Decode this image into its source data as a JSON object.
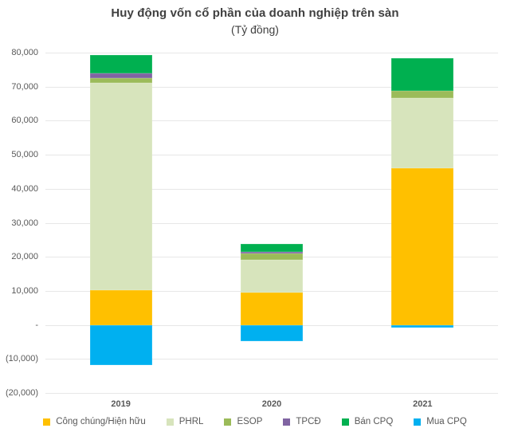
{
  "chart_data": {
    "type": "bar",
    "stacked": true,
    "title": "Huy động vốn cổ phần của doanh nghiệp trên sàn",
    "subtitle": "(Tỷ đồng)",
    "categories": [
      "2019",
      "2020",
      "2021"
    ],
    "series": [
      {
        "name": "Công chúng/Hiện hữu",
        "color": "#FFC000",
        "values": [
          10300,
          9400,
          46100
        ]
      },
      {
        "name": "PHRL",
        "color": "#D7E4BC",
        "values": [
          60700,
          9600,
          20600
        ]
      },
      {
        "name": "ESOP",
        "color": "#9BBB59",
        "values": [
          1600,
          1900,
          2100
        ]
      },
      {
        "name": "TPCĐ",
        "color": "#8064A2",
        "values": [
          1400,
          500,
          0
        ]
      },
      {
        "name": "Bán CPQ",
        "color": "#00B050",
        "values": [
          5200,
          2300,
          9600
        ]
      },
      {
        "name": "Mua CPQ",
        "color": "#00B0F0",
        "values": [
          -11900,
          -4700,
          -700
        ]
      }
    ],
    "ylim": [
      -20000,
      80000
    ],
    "yticks": [
      {
        "value": 80000,
        "label": "80,000"
      },
      {
        "value": 70000,
        "label": "70,000"
      },
      {
        "value": 60000,
        "label": "60,000"
      },
      {
        "value": 50000,
        "label": "50,000"
      },
      {
        "value": 40000,
        "label": "40,000"
      },
      {
        "value": 30000,
        "label": "30,000"
      },
      {
        "value": 20000,
        "label": "20,000"
      },
      {
        "value": 10000,
        "label": "10,000"
      },
      {
        "value": 0,
        "label": "-"
      },
      {
        "value": -10000,
        "label": "(10,000)"
      },
      {
        "value": -20000,
        "label": "(20,000)"
      }
    ],
    "grid": true,
    "legend_position": "bottom"
  },
  "style": {
    "grid_color": "#E7E7E7",
    "tick_label_color": "#595959",
    "title_color": "#404040"
  }
}
